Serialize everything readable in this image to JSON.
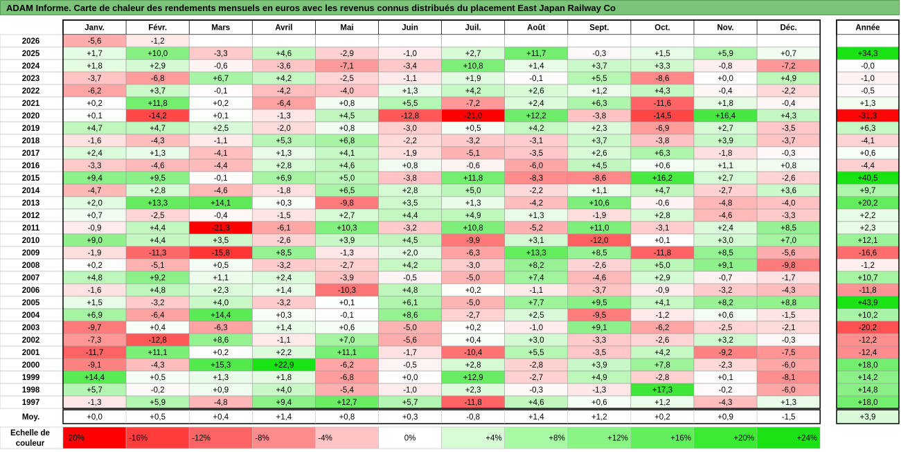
{
  "title": "ADAM Informe. Carte de chaleur des rendements mensuels en euros avec les revenus connus distribués du placement East Japan Railway Co",
  "chart_data": {
    "type": "heatmap",
    "months": [
      "Janv.",
      "Févr.",
      "Mars",
      "Avril",
      "Mai",
      "Juin",
      "Juil.",
      "Août",
      "Sept.",
      "Oct.",
      "Nov.",
      "Déc."
    ],
    "year_header": "Année",
    "avg_label": "Moy.",
    "rows": [
      {
        "year": "2026",
        "values": [
          -5.6,
          -1.2,
          null,
          null,
          null,
          null,
          null,
          null,
          null,
          null,
          null,
          null
        ],
        "labels": [
          "-5,6",
          "-1,2",
          "",
          "",
          "",
          "",
          "",
          "",
          "",
          "",
          "",
          ""
        ],
        "annual": null,
        "annual_label": ""
      },
      {
        "year": "2025",
        "values": [
          1.7,
          10.0,
          -3.3,
          4.6,
          -2.9,
          -1.0,
          2.7,
          11.7,
          -0.3,
          1.5,
          5.9,
          0.7
        ],
        "labels": [
          "+1,7",
          "+10,0",
          "-3,3",
          "+4,6",
          "-2,9",
          "-1,0",
          "+2,7",
          "+11,7",
          "-0,3",
          "+1,5",
          "+5,9",
          "+0,7"
        ],
        "annual": 34.3,
        "annual_label": "+34,3"
      },
      {
        "year": "2024",
        "values": [
          1.8,
          2.9,
          -0.6,
          -3.6,
          -7.1,
          -3.4,
          10.8,
          1.4,
          3.7,
          3.3,
          -0.8,
          -7.2
        ],
        "labels": [
          "+1,8",
          "+2,9",
          "-0,6",
          "-3,6",
          "-7,1",
          "-3,4",
          "+10,8",
          "+1,4",
          "+3,7",
          "+3,3",
          "-0,8",
          "-7,2"
        ],
        "annual": -0.0,
        "annual_label": "-0,0"
      },
      {
        "year": "2023",
        "values": [
          -3.7,
          -6.8,
          6.7,
          4.2,
          -2.5,
          -1.1,
          1.9,
          -0.1,
          5.5,
          -8.6,
          0.0,
          4.9
        ],
        "labels": [
          "-3,7",
          "-6,8",
          "+6,7",
          "+4,2",
          "-2,5",
          "-1,1",
          "+1,9",
          "-0,1",
          "+5,5",
          "-8,6",
          "+0,0",
          "+4,9"
        ],
        "annual": -1.0,
        "annual_label": "-1,0"
      },
      {
        "year": "2022",
        "values": [
          -6.2,
          3.7,
          -0.1,
          -4.2,
          -4.0,
          1.3,
          4.2,
          2.6,
          1.2,
          4.3,
          -0.4,
          -2.2
        ],
        "labels": [
          "-6,2",
          "+3,7",
          "-0,1",
          "-4,2",
          "-4,0",
          "+1,3",
          "+4,2",
          "+2,6",
          "+1,2",
          "+4,3",
          "-0,4",
          "-2,2"
        ],
        "annual": -0.5,
        "annual_label": "-0,5"
      },
      {
        "year": "2021",
        "values": [
          0.2,
          11.8,
          0.2,
          -6.4,
          0.8,
          5.5,
          -7.2,
          2.4,
          6.3,
          -11.6,
          1.8,
          -0.4
        ],
        "labels": [
          "+0,2",
          "+11,8",
          "+0,2",
          "-6,4",
          "+0,8",
          "+5,5",
          "-7,2",
          "+2,4",
          "+6,3",
          "-11,6",
          "+1,8",
          "-0,4"
        ],
        "annual": 1.3,
        "annual_label": "+1,3"
      },
      {
        "year": "2020",
        "values": [
          0.1,
          -14.2,
          0.1,
          -1.3,
          4.5,
          -12.8,
          -21.0,
          12.2,
          -3.8,
          -14.5,
          16.4,
          4.3
        ],
        "labels": [
          "+0,1",
          "-14,2",
          "+0,1",
          "-1,3",
          "+4,5",
          "-12,8",
          "-21,0",
          "+12,2",
          "-3,8",
          "-14,5",
          "+16,4",
          "+4,3"
        ],
        "annual": -31.3,
        "annual_label": "-31,3"
      },
      {
        "year": "2019",
        "values": [
          4.7,
          4.7,
          2.5,
          -2.0,
          0.8,
          -3.0,
          0.5,
          4.2,
          2.3,
          -6.9,
          2.7,
          -3.5
        ],
        "labels": [
          "+4,7",
          "+4,7",
          "+2,5",
          "-2,0",
          "+0,8",
          "-3,0",
          "+0,5",
          "+4,2",
          "+2,3",
          "-6,9",
          "+2,7",
          "-3,5"
        ],
        "annual": 6.3,
        "annual_label": "+6,3"
      },
      {
        "year": "2018",
        "values": [
          -1.6,
          -4.3,
          -1.1,
          5.3,
          6.8,
          -2.2,
          -3.2,
          -3.1,
          3.7,
          -3.8,
          3.9,
          -3.7
        ],
        "labels": [
          "-1,6",
          "-4,3",
          "-1,1",
          "+5,3",
          "+6,8",
          "-2,2",
          "-3,2",
          "-3,1",
          "+3,7",
          "-3,8",
          "+3,9",
          "-3,7"
        ],
        "annual": -4.1,
        "annual_label": "-4,1"
      },
      {
        "year": "2017",
        "values": [
          2.4,
          1.3,
          -4.1,
          1.3,
          4.1,
          -1.9,
          -5.1,
          -3.5,
          2.6,
          6.3,
          -1.8,
          -0.3
        ],
        "labels": [
          "+2,4",
          "+1,3",
          "-4,1",
          "+1,3",
          "+4,1",
          "-1,9",
          "-5,1",
          "-3,5",
          "+2,6",
          "+6,3",
          "-1,8",
          "-0,3"
        ],
        "annual": 0.6,
        "annual_label": "+0,6"
      },
      {
        "year": "2016",
        "values": [
          -3.3,
          -4.6,
          -4.4,
          2.8,
          4.6,
          0.8,
          -0.6,
          -6.0,
          4.5,
          0.6,
          1.1,
          0.8
        ],
        "labels": [
          "-3,3",
          "-4,6",
          "-4,4",
          "+2,8",
          "+4,6",
          "+0,8",
          "-0,6",
          "-6,0",
          "+4,5",
          "+0,6",
          "+1,1",
          "+0,8"
        ],
        "annual": -4.4,
        "annual_label": "-4,4"
      },
      {
        "year": "2015",
        "values": [
          9.4,
          9.5,
          -0.1,
          6.9,
          5.0,
          -3.8,
          11.8,
          -8.3,
          -8.6,
          16.2,
          2.7,
          -2.6
        ],
        "labels": [
          "+9,4",
          "+9,5",
          "-0,1",
          "+6,9",
          "+5,0",
          "-3,8",
          "+11,8",
          "-8,3",
          "-8,6",
          "+16,2",
          "+2,7",
          "-2,6"
        ],
        "annual": 40.5,
        "annual_label": "+40,5"
      },
      {
        "year": "2014",
        "values": [
          -4.7,
          2.8,
          -4.6,
          -1.8,
          6.5,
          2.8,
          5.0,
          -2.2,
          1.1,
          4.7,
          -2.7,
          3.6
        ],
        "labels": [
          "-4,7",
          "+2,8",
          "-4,6",
          "-1,8",
          "+6,5",
          "+2,8",
          "+5,0",
          "-2,2",
          "+1,1",
          "+4,7",
          "-2,7",
          "+3,6"
        ],
        "annual": 9.7,
        "annual_label": "+9,7"
      },
      {
        "year": "2013",
        "values": [
          2.0,
          13.3,
          14.1,
          0.3,
          -9.8,
          3.5,
          1.3,
          -4.2,
          10.6,
          -0.6,
          -4.8,
          -4.0
        ],
        "labels": [
          "+2,0",
          "+13,3",
          "+14,1",
          "+0,3",
          "-9,8",
          "+3,5",
          "+1,3",
          "-4,2",
          "+10,6",
          "-0,6",
          "-4,8",
          "-4,0"
        ],
        "annual": 20.2,
        "annual_label": "+20,2"
      },
      {
        "year": "2012",
        "values": [
          0.7,
          -2.5,
          -0.4,
          -1.5,
          2.7,
          4.4,
          4.9,
          1.3,
          -1.9,
          2.8,
          -4.6,
          -3.3
        ],
        "labels": [
          "+0,7",
          "-2,5",
          "-0,4",
          "-1,5",
          "+2,7",
          "+4,4",
          "+4,9",
          "+1,3",
          "-1,9",
          "+2,8",
          "-4,6",
          "-3,3"
        ],
        "annual": 2.2,
        "annual_label": "+2,2"
      },
      {
        "year": "2011",
        "values": [
          -0.9,
          4.4,
          -21.3,
          -6.1,
          10.3,
          -3.2,
          10.8,
          -5.2,
          11.0,
          -3.1,
          2.4,
          8.5
        ],
        "labels": [
          "-0,9",
          "+4,4",
          "-21,3",
          "-6,1",
          "+10,3",
          "-3,2",
          "+10,8",
          "-5,2",
          "+11,0",
          "-3,1",
          "+2,4",
          "+8,5"
        ],
        "annual": 2.3,
        "annual_label": "+2,3"
      },
      {
        "year": "2010",
        "values": [
          9.0,
          4.4,
          3.5,
          -2.6,
          3.9,
          4.5,
          -9.9,
          3.1,
          -12.0,
          0.1,
          3.0,
          7.0
        ],
        "labels": [
          "+9,0",
          "+4,4",
          "+3,5",
          "-2,6",
          "+3,9",
          "+4,5",
          "-9,9",
          "+3,1",
          "-12,0",
          "+0,1",
          "+3,0",
          "+7,0"
        ],
        "annual": 12.1,
        "annual_label": "+12,1"
      },
      {
        "year": "2009",
        "values": [
          -1.9,
          -11.3,
          -15.8,
          8.5,
          -1.3,
          2.0,
          -6.3,
          13.3,
          8.5,
          -11.8,
          8.5,
          -5.6
        ],
        "labels": [
          "-1,9",
          "-11,3",
          "-15,8",
          "+8,5",
          "-1,3",
          "+2,0",
          "-6,3",
          "+13,3",
          "+8,5",
          "-11,8",
          "+8,5",
          "-5,6"
        ],
        "annual": -16.6,
        "annual_label": "-16,6"
      },
      {
        "year": "2008",
        "values": [
          0.2,
          -5.1,
          0.5,
          -3.2,
          -2.7,
          4.2,
          -3.0,
          8.2,
          -2.6,
          5.0,
          9.1,
          -9.8
        ],
        "labels": [
          "+0,2",
          "-5,1",
          "+0,5",
          "-3,2",
          "-2,7",
          "+4,2",
          "-3,0",
          "+8,2",
          "-2,6",
          "+5,0",
          "+9,1",
          "-9,8"
        ],
        "annual": -1.2,
        "annual_label": "-1,2"
      },
      {
        "year": "2007",
        "values": [
          4.8,
          9.2,
          1.1,
          2.4,
          -3.9,
          -0.5,
          -5.0,
          7.4,
          -4.6,
          2.9,
          -0.7,
          -1.7
        ],
        "labels": [
          "+4,8",
          "+9,2",
          "+1,1",
          "+2,4",
          "-3,9",
          "-0,5",
          "-5,0",
          "+7,4",
          "-4,6",
          "+2,9",
          "-0,7",
          "-1,7"
        ],
        "annual": 10.7,
        "annual_label": "+10,7"
      },
      {
        "year": "2006",
        "values": [
          -1.6,
          4.8,
          2.3,
          1.4,
          -10.3,
          4.8,
          0.2,
          -1.1,
          -3.7,
          -0.9,
          -3.2,
          -4.3
        ],
        "labels": [
          "-1,6",
          "+4,8",
          "+2,3",
          "+1,4",
          "-10,3",
          "+4,8",
          "+0,2",
          "-1,1",
          "-3,7",
          "-0,9",
          "-3,2",
          "-4,3"
        ],
        "annual": -11.8,
        "annual_label": "-11,8"
      },
      {
        "year": "2005",
        "values": [
          1.5,
          -3.2,
          4.0,
          -3.2,
          0.1,
          6.1,
          -5.0,
          7.7,
          9.5,
          4.1,
          8.2,
          8.8
        ],
        "labels": [
          "+1,5",
          "-3,2",
          "+4,0",
          "-3,2",
          "+0,1",
          "+6,1",
          "-5,0",
          "+7,7",
          "+9,5",
          "+4,1",
          "+8,2",
          "+8,8"
        ],
        "annual": 43.9,
        "annual_label": "+43,9"
      },
      {
        "year": "2004",
        "values": [
          6.9,
          -6.4,
          14.4,
          0.3,
          -0.1,
          8.6,
          -2.7,
          2.5,
          -9.5,
          -1.2,
          0.6,
          -1.5
        ],
        "labels": [
          "+6,9",
          "-6,4",
          "+14,4",
          "+0,3",
          "-0,1",
          "+8,6",
          "-2,7",
          "+2,5",
          "-9,5",
          "-1,2",
          "+0,6",
          "-1,5"
        ],
        "annual": 10.2,
        "annual_label": "+10,2"
      },
      {
        "year": "2003",
        "values": [
          -9.7,
          0.4,
          -6.3,
          1.4,
          0.6,
          -5.0,
          0.2,
          -1.0,
          9.1,
          -6.2,
          -2.5,
          -2.1
        ],
        "labels": [
          "-9,7",
          "+0,4",
          "-6,3",
          "+1,4",
          "+0,6",
          "-5,0",
          "+0,2",
          "-1,0",
          "+9,1",
          "-6,2",
          "-2,5",
          "-2,1"
        ],
        "annual": -20.2,
        "annual_label": "-20,2"
      },
      {
        "year": "2002",
        "values": [
          -7.3,
          -12.8,
          8.6,
          -1.1,
          7.0,
          -5.6,
          0.4,
          3.0,
          -3.3,
          -2.6,
          3.2,
          -0.3
        ],
        "labels": [
          "-7,3",
          "-12,8",
          "+8,6",
          "-1,1",
          "+7,0",
          "-5,6",
          "+0,4",
          "+3,0",
          "-3,3",
          "-2,6",
          "+3,2",
          "-0,3"
        ],
        "annual": -12.2,
        "annual_label": "-12,2"
      },
      {
        "year": "2001",
        "values": [
          -11.7,
          11.1,
          0.2,
          2.2,
          11.1,
          -1.7,
          -10.4,
          5.5,
          -3.5,
          4.2,
          -9.2,
          -7.5
        ],
        "labels": [
          "-11,7",
          "+11,1",
          "+0,2",
          "+2,2",
          "+11,1",
          "-1,7",
          "-10,4",
          "+5,5",
          "-3,5",
          "+4,2",
          "-9,2",
          "-7,5"
        ],
        "annual": -12.4,
        "annual_label": "-12,4"
      },
      {
        "year": "2000",
        "values": [
          -9.1,
          -4.3,
          15.3,
          22.9,
          -6.2,
          -0.5,
          2.8,
          -2.8,
          3.9,
          7.8,
          -2.3,
          -6.0
        ],
        "labels": [
          "-9,1",
          "-4,3",
          "+15,3",
          "+22,9",
          "-6,2",
          "-0,5",
          "+2,8",
          "-2,8",
          "+3,9",
          "+7,8",
          "-2,3",
          "-6,0"
        ],
        "annual": 18.0,
        "annual_label": "+18,0"
      },
      {
        "year": "1999",
        "values": [
          14.4,
          0.5,
          1.3,
          1.8,
          -6.8,
          0.0,
          12.9,
          -2.7,
          4.9,
          -2.8,
          0.1,
          -8.1
        ],
        "labels": [
          "+14,4",
          "+0,5",
          "+1,3",
          "+1,8",
          "-6,8",
          "+0,0",
          "+12,9",
          "-2,7",
          "+4,9",
          "-2,8",
          "+0,1",
          "-8,1"
        ],
        "annual": 14.2,
        "annual_label": "+14,2"
      },
      {
        "year": "1998",
        "values": [
          5.7,
          -0.2,
          0.9,
          4.0,
          -5.4,
          -1.0,
          2.3,
          -0.3,
          -1.3,
          17.3,
          -0.2,
          -6.0
        ],
        "labels": [
          "+5,7",
          "-0,2",
          "+0,9",
          "+4,0",
          "-5,4",
          "-1,0",
          "+2,3",
          "-0,3",
          "-1,3",
          "+17,3",
          "-0,2",
          "-6,0"
        ],
        "annual": 14.8,
        "annual_label": "+14,8"
      },
      {
        "year": "1997",
        "values": [
          -1.3,
          5.9,
          -4.8,
          9.4,
          12.7,
          5.7,
          -11.8,
          4.6,
          0.6,
          1.2,
          -4.3,
          1.3
        ],
        "labels": [
          "-1,3",
          "+5,9",
          "-4,8",
          "+9,4",
          "+12,7",
          "+5,7",
          "-11,8",
          "+4,6",
          "+0,6",
          "+1,2",
          "-4,3",
          "+1,3"
        ],
        "annual": 18.0,
        "annual_label": "+18,0"
      }
    ],
    "averages": {
      "values": [
        0.0,
        0.5,
        0.4,
        1.4,
        0.8,
        0.3,
        -0.8,
        1.4,
        1.2,
        0.2,
        0.9,
        -1.5
      ],
      "labels": [
        "+0,0",
        "+0,5",
        "+0,4",
        "+1,4",
        "+0,8",
        "+0,3",
        "-0,8",
        "+1,4",
        "+1,2",
        "+0,2",
        "+0,9",
        "-1,5"
      ],
      "annual": 3.9,
      "annual_label": "+3,9"
    },
    "scale": {
      "label_line1": "Echelle de",
      "label_line2": "couleur",
      "steps": [
        {
          "label": "-20%",
          "value": -20,
          "color": "#ff0000"
        },
        {
          "label": "-16%",
          "value": -16,
          "color": "#ff3d3d"
        },
        {
          "label": "-12%",
          "value": -12,
          "color": "#ff6464"
        },
        {
          "label": "-8%",
          "value": -8,
          "color": "#ff8c8c"
        },
        {
          "label": "-4%",
          "value": -4,
          "color": "#ffc4c4"
        },
        {
          "label": "0%",
          "value": 0,
          "color": "#ffffff"
        },
        {
          "label": "+4%",
          "value": 4,
          "color": "#d8fdd6"
        },
        {
          "label": "+8%",
          "value": 8,
          "color": "#a8f9a4"
        },
        {
          "label": "+12%",
          "value": 12,
          "color": "#8af585"
        },
        {
          "label": "+16%",
          "value": 16,
          "color": "#62ef5c"
        },
        {
          "label": "+20%",
          "value": 20,
          "color": "#3aea33"
        },
        {
          "label": "+24%",
          "value": 24,
          "color": "#1ae313"
        }
      ]
    },
    "colors": {
      "negative_max": "#ff0000",
      "neutral": "#ffffff",
      "positive_max": "#1ae313",
      "title_bg": "#7cc47a"
    }
  }
}
